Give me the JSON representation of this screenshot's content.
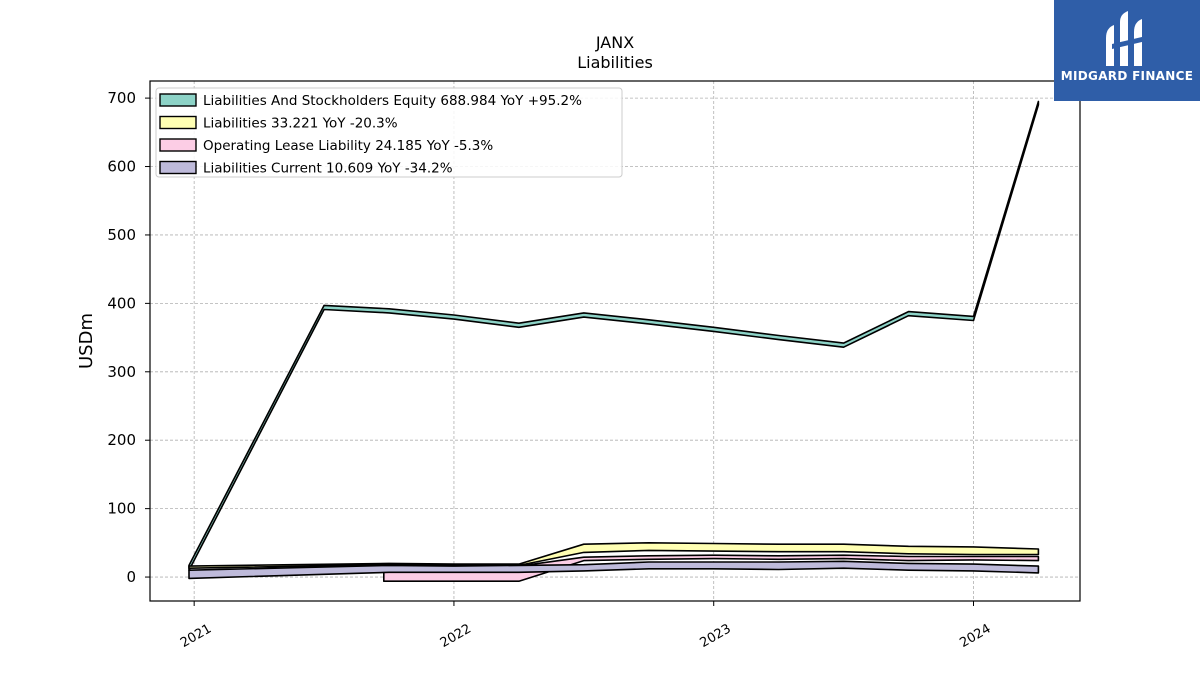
{
  "brand": {
    "name": "MIDGARD FINANCE",
    "bg_color": "#2f5ea8"
  },
  "chart_data": {
    "type": "area",
    "title": "JANX",
    "subtitle": "Liabilities",
    "xlabel": "",
    "ylabel": "USDm",
    "xlim": [
      2020.83,
      2024.41
    ],
    "ylim": [
      -35,
      725
    ],
    "x_ticks": [
      {
        "value": 2021,
        "label": "2021"
      },
      {
        "value": 2022,
        "label": "2022"
      },
      {
        "value": 2023,
        "label": "2023"
      },
      {
        "value": 2024,
        "label": "2024"
      }
    ],
    "y_ticks": [
      0,
      100,
      200,
      300,
      400,
      500,
      600,
      700
    ],
    "grid": true,
    "legend_position": "top-left",
    "series": [
      {
        "name": "Liabilities And Stockholders Equity",
        "legend_label": "Liabilities And Stockholders Equity  688.984 YoY +95.2%",
        "color": "#8dd3c7",
        "x": [
          2020.98,
          2021.5,
          2021.75,
          2022.0,
          2022.25,
          2022.5,
          2022.75,
          2023.0,
          2023.25,
          2023.5,
          2023.75,
          2024.0,
          2024.25
        ],
        "upper": [
          17,
          397,
          392,
          383,
          371,
          386,
          376,
          365,
          353,
          342,
          388,
          381,
          695
        ],
        "lower": [
          10,
          391,
          386,
          377,
          365,
          380,
          370,
          359,
          347,
          336,
          382,
          375,
          690
        ]
      },
      {
        "name": "Liabilities",
        "legend_label": "Liabilities  33.221 YoY -20.3%",
        "color": "#ffffb3",
        "x": [
          2020.98,
          2021.75,
          2022.0,
          2022.25,
          2022.5,
          2022.75,
          2023.0,
          2023.25,
          2023.5,
          2023.75,
          2024.0,
          2024.25
        ],
        "upper": [
          16,
          20,
          19,
          19,
          48,
          50,
          49,
          48,
          48,
          45,
          44,
          41
        ],
        "lower": [
          13,
          18,
          17,
          17,
          36,
          39,
          38,
          37,
          37,
          34,
          33,
          33
        ]
      },
      {
        "name": "Operating Lease Liability",
        "legend_label": "Operating Lease Liability  24.185 YoY -5.3%",
        "color": "#fccde5",
        "x": [
          2021.73,
          2022.0,
          2022.25,
          2022.5,
          2022.75,
          2023.0,
          2023.25,
          2023.5,
          2023.75,
          2024.0,
          2024.25
        ],
        "upper": [
          15,
          16,
          16,
          29,
          31,
          32,
          31,
          32,
          30,
          30,
          30
        ],
        "lower": [
          -6,
          -6,
          -6,
          24,
          26,
          27,
          26,
          27,
          24,
          25,
          24
        ]
      },
      {
        "name": "Liabilities Current",
        "legend_label": "Liabilities Current  10.609 YoY -34.2%",
        "color": "#bebada",
        "x": [
          2020.98,
          2021.75,
          2022.0,
          2022.25,
          2022.5,
          2022.75,
          2023.0,
          2023.25,
          2023.5,
          2023.75,
          2024.0,
          2024.25
        ],
        "upper": [
          10,
          17,
          16,
          17,
          18,
          22,
          22,
          22,
          23,
          20,
          19,
          16
        ],
        "lower": [
          -2,
          7,
          7,
          7,
          9,
          12,
          12,
          11,
          13,
          10,
          9,
          6
        ]
      }
    ]
  }
}
